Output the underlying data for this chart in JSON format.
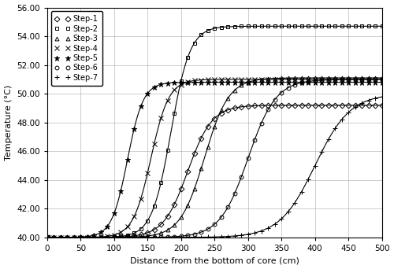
{
  "xlabel": "Distance from the bottom of core (cm)",
  "ylabel": "Temperature (°C)",
  "xlim": [
    0,
    500
  ],
  "ylim": [
    40.0,
    56.0
  ],
  "yticks": [
    40.0,
    42.0,
    44.0,
    46.0,
    48.0,
    50.0,
    52.0,
    54.0,
    56.0
  ],
  "xticks": [
    0,
    50,
    100,
    150,
    200,
    250,
    300,
    350,
    400,
    450,
    500
  ],
  "steps": [
    {
      "label": "Step-1",
      "marker": "D",
      "markersize": 3.5,
      "fillstyle": "none",
      "x_inflect": 210,
      "T_min": 40.0,
      "T_max": 49.2,
      "k": 0.055
    },
    {
      "label": "Step-2",
      "marker": "s",
      "markersize": 3.5,
      "fillstyle": "none",
      "x_inflect": 185,
      "T_min": 40.0,
      "T_max": 54.7,
      "k": 0.07
    },
    {
      "label": "Step-3",
      "marker": "^",
      "markersize": 3.5,
      "fillstyle": "none",
      "x_inflect": 235,
      "T_min": 40.0,
      "T_max": 51.1,
      "k": 0.055
    },
    {
      "label": "Step-4",
      "marker": "x",
      "markersize": 4.0,
      "fillstyle": "full",
      "x_inflect": 155,
      "T_min": 40.0,
      "T_max": 51.0,
      "k": 0.075
    },
    {
      "label": "Step-5",
      "marker": "*",
      "markersize": 5.0,
      "fillstyle": "full",
      "x_inflect": 120,
      "T_min": 40.0,
      "T_max": 50.8,
      "k": 0.085
    },
    {
      "label": "Step-6",
      "marker": "o",
      "markersize": 3.5,
      "fillstyle": "none",
      "x_inflect": 300,
      "T_min": 40.0,
      "T_max": 51.0,
      "k": 0.048
    },
    {
      "label": "Step-7",
      "marker": "+",
      "markersize": 5.0,
      "fillstyle": "full",
      "x_inflect": 400,
      "T_min": 40.0,
      "T_max": 50.0,
      "k": 0.038
    }
  ],
  "color": "#000000",
  "background": "#ffffff",
  "grid_color": "#aaaaaa",
  "linewidth": 0.8,
  "marker_every_pts": 20
}
